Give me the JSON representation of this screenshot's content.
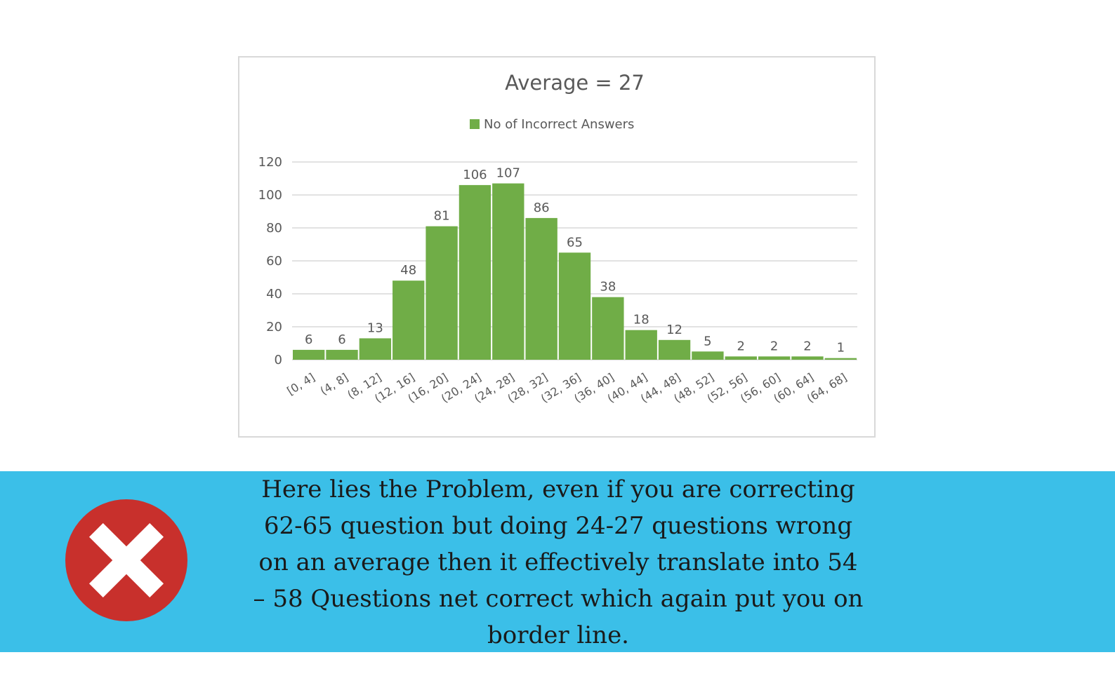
{
  "chart_data": {
    "type": "bar",
    "title": "Average = 27",
    "legend": [
      "No of Incorrect Answers"
    ],
    "legend_position": "top",
    "categories": [
      "[0, 4]",
      "(4, 8]",
      "(8, 12]",
      "(12, 16]",
      "(16, 20]",
      "(20, 24]",
      "(24, 28]",
      "(28, 32]",
      "(32, 36]",
      "(36, 40]",
      "(40, 44]",
      "(44, 48]",
      "(48, 52]",
      "(52, 56]",
      "(56, 60]",
      "(60, 64]",
      "(64, 68]"
    ],
    "series": [
      {
        "name": "No of Incorrect Answers",
        "values": [
          6,
          6,
          13,
          48,
          81,
          106,
          107,
          86,
          65,
          38,
          18,
          12,
          5,
          2,
          2,
          2,
          1
        ],
        "data_labels": [
          "6",
          "6",
          "13",
          "48",
          "81",
          "106",
          "107",
          "86",
          "65",
          "38",
          "18",
          "12",
          "5",
          "2",
          "2",
          "2",
          "1"
        ]
      }
    ],
    "y_ticks": [
      "0",
      "20",
      "40",
      "60",
      "80",
      "100",
      "120"
    ],
    "ylim": [
      0,
      120
    ],
    "grid": true,
    "colors": {
      "bar": "#70ad47",
      "grid": "#d9d9d9",
      "text": "#595959",
      "axis_text": "#595959"
    }
  },
  "banner": {
    "background": "#3bbfe8",
    "icon": "close-icon",
    "icon_color": "#c8302c",
    "lines": [
      "Here lies the Problem, even if you are correcting",
      "62-65 question but doing 24-27 questions wrong",
      "on an average then it effectively translate into 54",
      "– 58 Questions net correct which again put you on",
      "border line."
    ]
  }
}
